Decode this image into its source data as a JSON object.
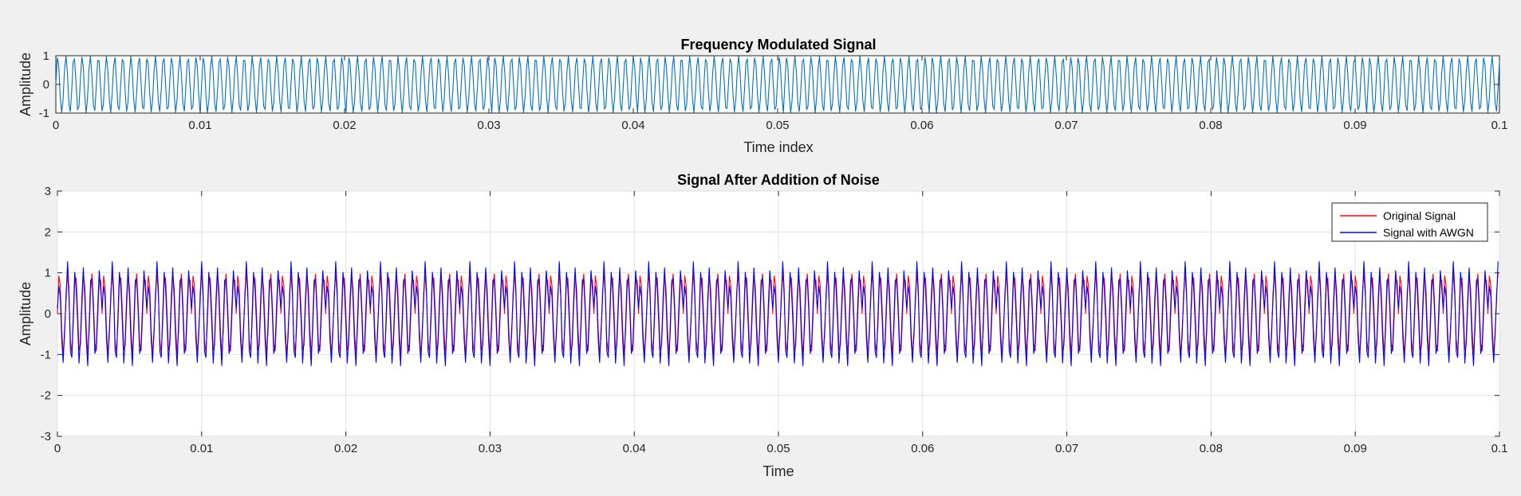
{
  "figure": {
    "background": "#f0f0f0",
    "axes_background": "#ffffff"
  },
  "chart_data": [
    {
      "type": "line",
      "title": "Frequency Modulated Signal",
      "xlabel": "Time index",
      "ylabel": "Amplitude",
      "xlim": [
        0,
        0.1
      ],
      "ylim": [
        -1,
        1
      ],
      "xticks": [
        "0",
        "0.01",
        "0.02",
        "0.03",
        "0.04",
        "0.05",
        "0.06",
        "0.07",
        "0.08",
        "0.09",
        "0.1"
      ],
      "yticks": [
        "-1",
        "0",
        "1"
      ],
      "grid": false,
      "series": [
        {
          "color": "#0072bd",
          "x": [
            0,
            0.0001,
            0.0002,
            0.0003,
            0.0004,
            0.0005,
            0.0006,
            0.0007,
            0.0008,
            0.0009,
            0.001,
            0.0011,
            0.0012,
            0.0013,
            0.0014,
            0.0015,
            0.0016,
            0.0017,
            0.0018,
            0.0019,
            0.002,
            0.0021,
            0.0022,
            0.0023,
            0.0024,
            0.0025,
            0.0026,
            0.0027,
            0.0028,
            0.0029,
            0.003,
            0.0031,
            0.0032,
            0.0033,
            0.0034,
            0.0035,
            0.0036,
            0.0037,
            0.0038,
            0.0039,
            0.004,
            0.0041,
            0.0042,
            0.0043,
            0.0044,
            0.0045,
            0.0046,
            0.0047,
            0.0048,
            0.0049,
            0.005,
            0.0051,
            0.0052,
            0.0053,
            0.0054,
            0.0055,
            0.0056,
            0.0057,
            0.0058,
            0.0059,
            0.006,
            0.0061,
            0.0062,
            0.0063,
            0.0064,
            0.0065,
            0.0066,
            0.0067,
            0.0068,
            0.0069,
            0.007,
            0.0071,
            0.0072,
            0.0073,
            0.0074,
            0.0075,
            0.0076,
            0.0077,
            0.0078,
            0.0079,
            0.008,
            0.0081,
            0.0082,
            0.0083,
            0.0084,
            0.0085,
            0.0086,
            0.0087,
            0.0088,
            0.0089,
            0.009,
            0.0091,
            0.0092,
            0.0093,
            0.0094,
            0.0095,
            0.0096,
            0.0097,
            0.0098,
            0.0099,
            0.01
          ],
          "y": [
            0,
            0.93,
            0.68,
            -0.38,
            -0.99,
            -0.56,
            0.52,
            0.99,
            0.41,
            -0.65,
            -0.96,
            -0.24,
            0.79,
            0.88,
            0.05,
            -0.89,
            -0.77,
            0.17,
            0.96,
            0.62,
            -0.37,
            -0.99,
            -0.45,
            0.56,
            0.98,
            0.26,
            -0.72,
            -0.92,
            -0.06,
            0.84,
            0.82,
            -0.12,
            -0.93,
            -0.68,
            0.32,
            0.98,
            0.52,
            -0.49,
            -0.99,
            -0.34,
            0.64,
            0.95,
            0.16,
            -0.77,
            -0.87,
            0.03,
            0.88,
            0.76,
            -0.22,
            -0.95,
            -0.62,
            0.39,
            0.99,
            0.46,
            -0.55,
            -0.97,
            -0.28,
            0.69,
            0.93,
            0.09,
            -0.81,
            -0.84,
            0.1,
            0.9,
            0.72,
            -0.29,
            -0.97,
            -0.57,
            0.46,
            0.99,
            0.4,
            -0.61,
            -0.96,
            -0.2,
            0.74,
            0.9,
            0.01,
            -0.85,
            -0.8,
            0.18,
            0.93,
            0.67,
            -0.36,
            -0.98,
            -0.51,
            0.52,
            0.98,
            0.33,
            -0.66,
            -0.94,
            -0.14,
            0.78,
            0.87,
            -0.05,
            -0.88,
            -0.76,
            0.24,
            0.95,
            0.61,
            -0.41,
            -0.99
          ]
        }
      ]
    },
    {
      "type": "line",
      "title": "Signal After Addition of Noise",
      "xlabel": "Time",
      "ylabel": "Amplitude",
      "xlim": [
        0,
        0.1
      ],
      "ylim": [
        -3,
        3
      ],
      "xticks": [
        "0",
        "0.01",
        "0.02",
        "0.03",
        "0.04",
        "0.05",
        "0.06",
        "0.07",
        "0.08",
        "0.09",
        "0.1"
      ],
      "yticks": [
        "-3",
        "-2",
        "-1",
        "0",
        "1",
        "2",
        "3"
      ],
      "grid": true,
      "legend_position": "top-right",
      "series": [
        {
          "name": "Original Signal",
          "color": "#ff0000",
          "x": [
            0,
            0.0001,
            0.0002,
            0.0003,
            0.0004,
            0.0005,
            0.0006,
            0.0007,
            0.0008,
            0.0009,
            0.001,
            0.0011,
            0.0012,
            0.0013,
            0.0014,
            0.0015,
            0.0016,
            0.0017,
            0.0018,
            0.0019,
            0.002,
            0.0021,
            0.0022,
            0.0023,
            0.0024,
            0.0025,
            0.0026,
            0.0027,
            0.0028,
            0.0029,
            0.003
          ],
          "y": [
            0,
            0.93,
            0.68,
            -0.38,
            -0.99,
            -0.56,
            0.52,
            0.99,
            0.41,
            -0.65,
            -0.96,
            -0.24,
            0.79,
            0.88,
            0.05,
            -0.89,
            -0.77,
            0.17,
            0.96,
            0.62,
            -0.37,
            -0.99,
            -0.45,
            0.56,
            0.98,
            0.26,
            -0.72,
            -0.92,
            -0.06,
            0.84,
            0.82
          ]
        },
        {
          "name": "Signal with AWGN",
          "color": "#0000ff",
          "x": [
            0,
            0.0001,
            0.0002,
            0.0003,
            0.0004,
            0.0005,
            0.0006,
            0.0007,
            0.0008,
            0.0009,
            0.001,
            0.0011,
            0.0012,
            0.0013,
            0.0014,
            0.0015,
            0.0016,
            0.0017,
            0.0018,
            0.0019,
            0.002,
            0.0021,
            0.0022,
            0.0023,
            0.0024,
            0.0025,
            0.0026,
            0.0027,
            0.0028,
            0.0029,
            0.003
          ],
          "y": [
            0.12,
            0.68,
            0.41,
            -0.62,
            -1.2,
            -0.38,
            0.33,
            1.28,
            0.55,
            -0.92,
            -1.08,
            -0.02,
            1.02,
            0.61,
            -0.21,
            -1.22,
            -0.6,
            0.4,
            1.13,
            0.35,
            -0.66,
            -1.28,
            -0.24,
            0.82,
            0.85,
            0.05,
            -0.98,
            -0.77,
            0.2,
            1.06,
            0.58
          ]
        }
      ]
    }
  ]
}
